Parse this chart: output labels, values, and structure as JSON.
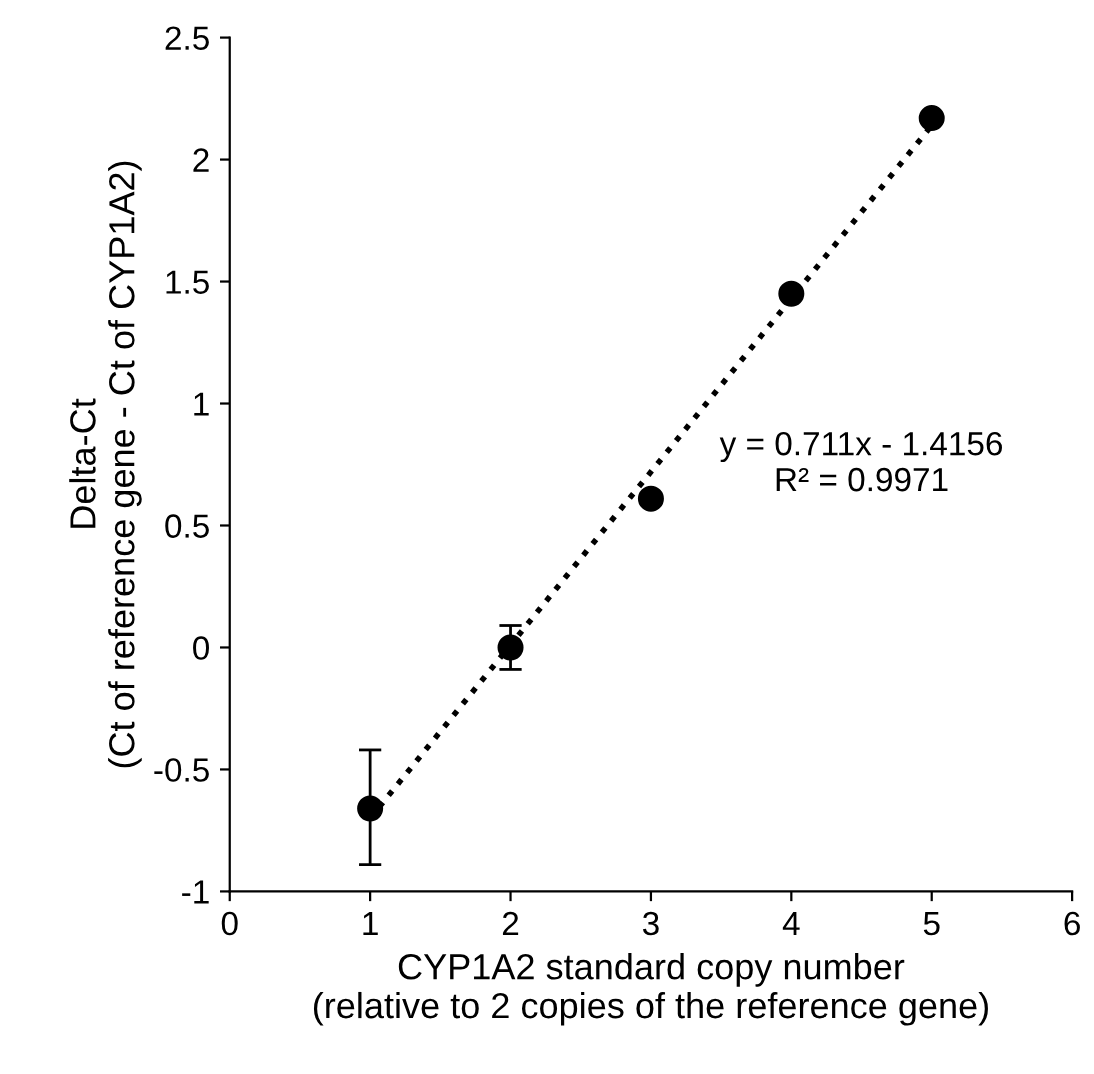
{
  "chart_data": {
    "type": "scatter",
    "xlabel": "CYP1A2 standard copy number\n(relative to 2 copies of the reference gene)",
    "ylabel": "Delta-Ct\n(Ct of reference gene - Ct of CYP1A2)",
    "series": [
      {
        "color": "#000000",
        "marker": "circle",
        "x": [
          1,
          2,
          3,
          4,
          5
        ],
        "values": [
          -0.66,
          0.0,
          0.61,
          1.45,
          2.17
        ],
        "errors": [
          [
            -0.89,
            -0.42
          ],
          [
            -0.09,
            0.09
          ],
          null,
          null,
          null
        ]
      },
      {
        "type": "line",
        "color": "#000000",
        "line_style": "dotted",
        "x": [
          1,
          5
        ],
        "values": [
          -0.7,
          2.14
        ]
      }
    ],
    "annotations": [
      "y = 0.711x - 1.4156\nR² = 0.9971"
    ],
    "xlim": [
      0,
      6
    ],
    "xticks": [
      0,
      1,
      2,
      3,
      4,
      5,
      6
    ],
    "ylim": [
      -1,
      2.5
    ],
    "yticks": [
      -1,
      -0.5,
      0,
      0.5,
      1,
      1.5,
      2,
      2.5
    ],
    "grid": false,
    "legend": false
  }
}
